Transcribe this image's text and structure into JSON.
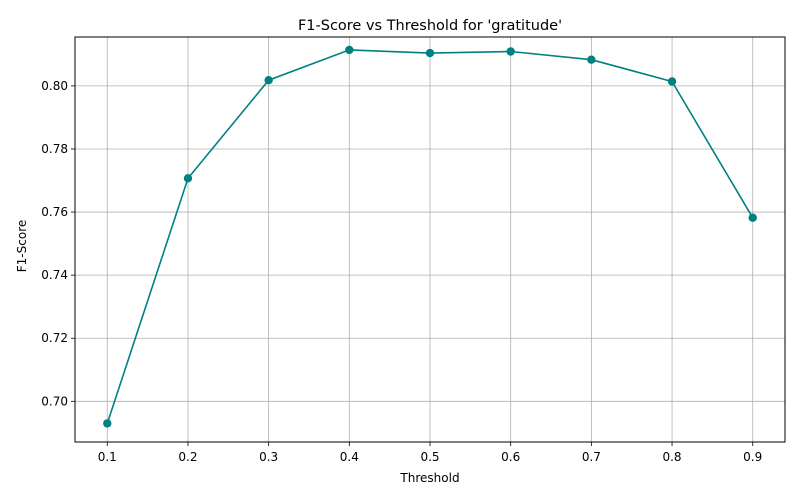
{
  "chart_data": {
    "type": "line",
    "title": "F1-Score vs Threshold for 'gratitude'",
    "xlabel": "Threshold",
    "ylabel": "F1-Score",
    "x": [
      0.1,
      0.2,
      0.3,
      0.4,
      0.5,
      0.6,
      0.7,
      0.8,
      0.9
    ],
    "series": [
      {
        "values": [
          0.693,
          0.7707,
          0.8018,
          0.8114,
          0.8104,
          0.8109,
          0.8083,
          0.8014,
          0.7582
        ],
        "color": "#008080",
        "marker": "circle"
      }
    ],
    "xticks": [
      "0.1",
      "0.2",
      "0.3",
      "0.4",
      "0.5",
      "0.6",
      "0.7",
      "0.8",
      "0.9"
    ],
    "yticks": [
      "0.70",
      "0.72",
      "0.74",
      "0.76",
      "0.78",
      "0.80"
    ],
    "ytick_values": [
      0.7,
      0.72,
      0.74,
      0.76,
      0.78,
      0.8
    ],
    "xlim": [
      0.06,
      0.94
    ],
    "ylim": [
      0.6871,
      0.8155
    ],
    "grid": true,
    "grid_color": "#b0b0b0"
  }
}
